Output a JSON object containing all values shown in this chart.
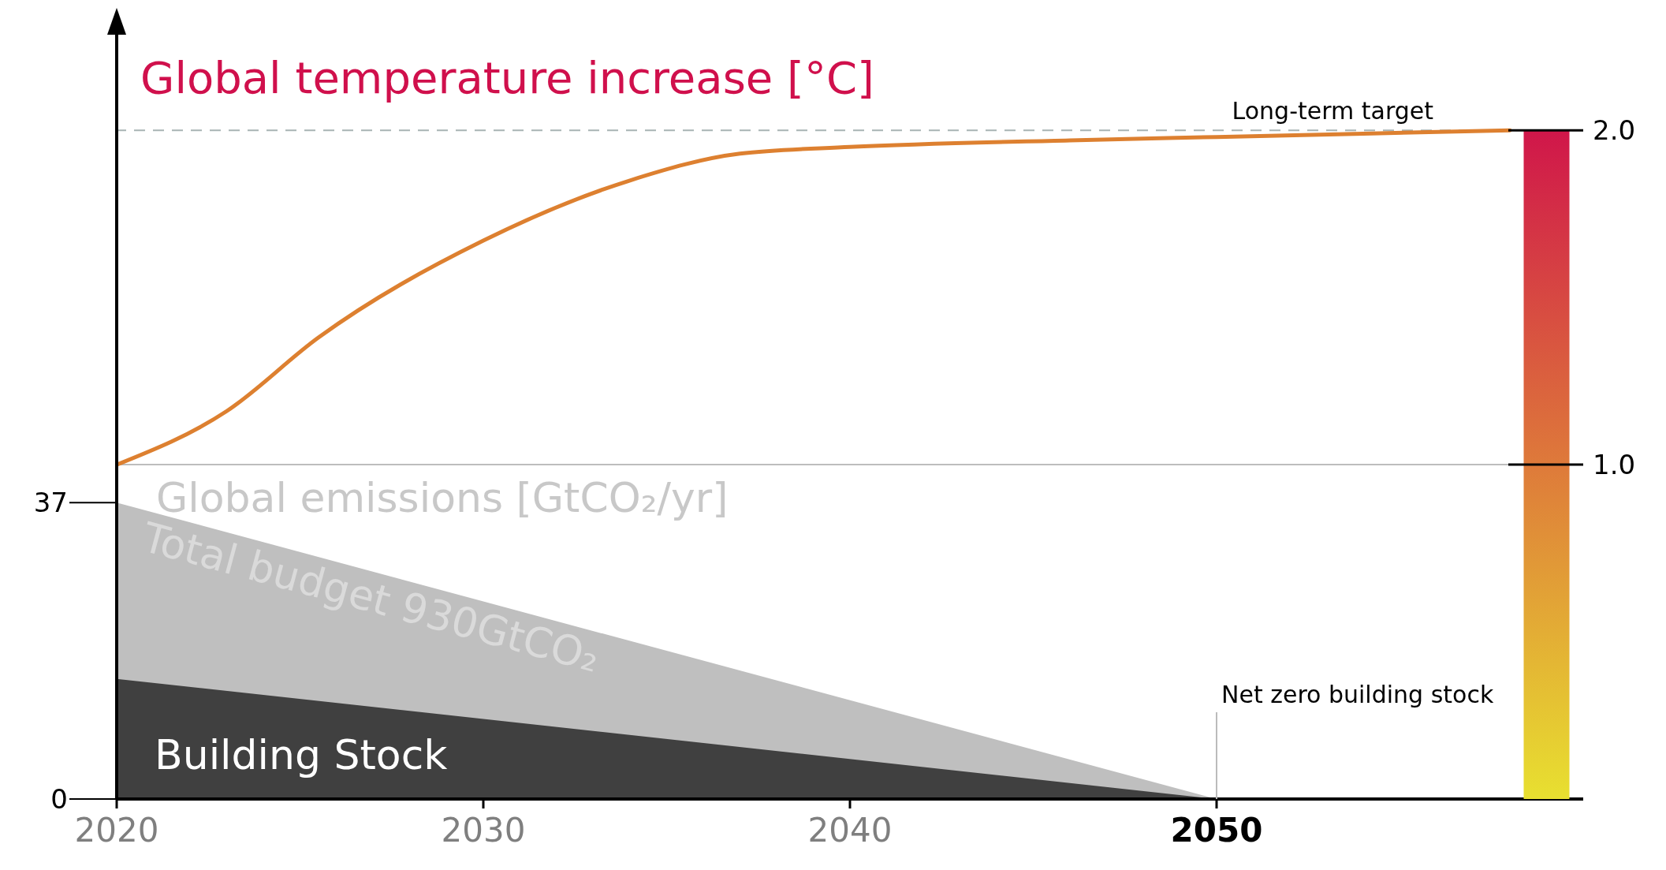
{
  "chart_data": {
    "type": "area",
    "title": "Global temperature increase [°C]",
    "ylabel": "Global emissions [GtCO₂/yr]",
    "xlim": [
      2020,
      2060
    ],
    "xticks": [
      2020,
      2030,
      2040,
      2050
    ],
    "ylim": [
      0,
      96
    ],
    "yticks": [
      0,
      37
    ],
    "y2lim": [
      0,
      2.3
    ],
    "y2ticks": [
      {
        "value": 1,
        "label": "1.0"
      },
      {
        "value": 2,
        "label": "2.0"
      }
    ],
    "series": [
      {
        "name": "Total budget 930GtCO₂",
        "color": "#bfbfbf",
        "x": [
          2020,
          2050
        ],
        "values": [
          37,
          0
        ]
      },
      {
        "name": "Building Stock",
        "color": "#404040",
        "x": [
          2020,
          2050
        ],
        "values": [
          15,
          0
        ]
      },
      {
        "type": "bar",
        "axis": "y2",
        "color": "#d0164a",
        "x": [
          2059
        ],
        "values": [
          2.0
        ]
      },
      {
        "type": "line",
        "axis": "y2",
        "color": "#dd8030",
        "x": [
          2020,
          2023,
          2025.5,
          2030,
          2034,
          2037,
          2040,
          2046,
          2050,
          2054,
          2058
        ],
        "values": [
          1.0,
          1.16,
          1.38,
          1.67,
          1.85,
          1.93,
          1.95,
          1.97,
          1.98,
          1.99,
          2.0
        ]
      }
    ],
    "ref_lines": [
      {
        "axis": "y2",
        "value": 2,
        "label": "Long-term target",
        "color": "#a8b4b4",
        "line_style": "dashed"
      },
      {
        "axis": "y2",
        "value": 1,
        "label": null,
        "color": "#bdbdbd",
        "line_style": "solid"
      }
    ],
    "annotations": [
      {
        "text": "Net zero building stock",
        "x": 2050,
        "y": 0
      }
    ]
  }
}
